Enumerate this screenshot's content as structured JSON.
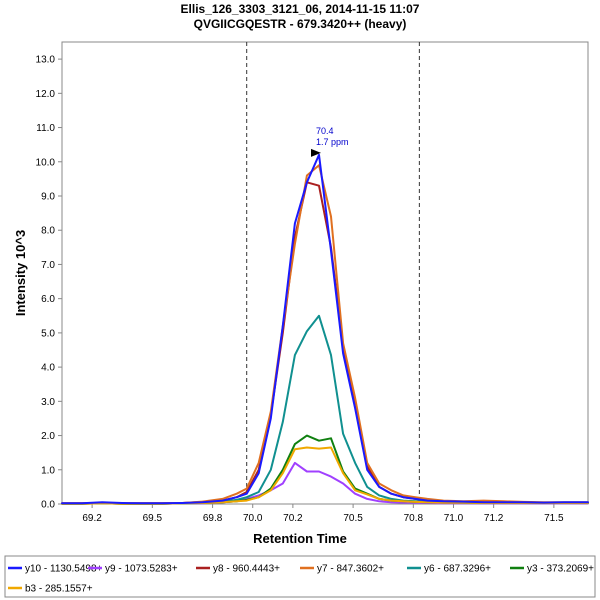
{
  "chart_data": {
    "type": "line",
    "title": "Ellis_126_3303_3121_06, 2014-11-15 11:07",
    "subtitle": "QVGIICGQESTR - 679.3420++ (heavy)",
    "xlabel": "Retention Time",
    "ylabel": "Intensity 10^3",
    "xlim": [
      69.05,
      71.67
    ],
    "ylim": [
      0,
      13.5
    ],
    "xticks": [
      69.2,
      69.5,
      69.8,
      70.0,
      70.2,
      70.5,
      70.8,
      71.0,
      71.2,
      71.5
    ],
    "xtick_labels": [
      "69.2",
      "69.5",
      "69.8",
      "70.0",
      "70.2",
      "70.5",
      "70.8",
      "71.0",
      "71.2",
      "71.5"
    ],
    "yticks": [
      0,
      1,
      2,
      3,
      4,
      5,
      6,
      7,
      8,
      9,
      10,
      11,
      12,
      13
    ],
    "ytick_labels": [
      "0.0",
      "1.0",
      "2.0",
      "3.0",
      "4.0",
      "5.0",
      "6.0",
      "7.0",
      "8.0",
      "9.0",
      "10.0",
      "11.0",
      "12.0",
      "13.0"
    ],
    "integration_bounds": [
      69.97,
      70.83
    ],
    "peak_annotation": {
      "x": 70.35,
      "y": 10.2,
      "rt_label": "70.4",
      "ppm_label": "1.7 ppm"
    },
    "x": [
      69.05,
      69.15,
      69.25,
      69.35,
      69.45,
      69.55,
      69.65,
      69.75,
      69.85,
      69.92,
      69.97,
      70.03,
      70.09,
      70.15,
      70.21,
      70.27,
      70.33,
      70.39,
      70.45,
      70.51,
      70.57,
      70.63,
      70.69,
      70.75,
      70.81,
      70.87,
      70.95,
      71.05,
      71.15,
      71.25,
      71.35,
      71.45,
      71.55,
      71.67
    ],
    "series": [
      {
        "name": "y10 - 1130.5498+",
        "color": "#1a1aff",
        "values": [
          0.02,
          0.02,
          0.05,
          0.03,
          0.02,
          0.02,
          0.03,
          0.05,
          0.1,
          0.2,
          0.3,
          0.9,
          2.5,
          5.2,
          8.2,
          9.4,
          10.2,
          7.4,
          4.4,
          2.8,
          1.0,
          0.5,
          0.3,
          0.2,
          0.15,
          0.1,
          0.08,
          0.07,
          0.05,
          0.05,
          0.05,
          0.04,
          0.05,
          0.05
        ]
      },
      {
        "name": "y9 - 1073.5283+",
        "color": "#a040ff",
        "values": [
          0.01,
          0.01,
          0.02,
          0.01,
          0.01,
          0.01,
          0.02,
          0.02,
          0.05,
          0.08,
          0.15,
          0.25,
          0.4,
          0.6,
          1.2,
          0.95,
          0.95,
          0.8,
          0.6,
          0.3,
          0.15,
          0.08,
          0.05,
          0.04,
          0.04,
          0.03,
          0.02,
          0.02,
          0.02,
          0.02,
          0.02,
          0.02,
          0.02,
          0.02
        ]
      },
      {
        "name": "y8 - 960.4443+",
        "color": "#aa2020",
        "values": [
          0.02,
          0.02,
          0.03,
          0.02,
          0.02,
          0.02,
          0.03,
          0.06,
          0.1,
          0.2,
          0.35,
          1.0,
          2.6,
          5.0,
          7.8,
          9.4,
          9.3,
          7.5,
          4.6,
          2.9,
          1.1,
          0.5,
          0.3,
          0.2,
          0.15,
          0.1,
          0.08,
          0.06,
          0.05,
          0.05,
          0.04,
          0.04,
          0.04,
          0.04
        ]
      },
      {
        "name": "y7 - 847.3602+",
        "color": "#e07020",
        "values": [
          0.02,
          0.02,
          0.03,
          0.02,
          0.02,
          0.02,
          0.03,
          0.07,
          0.15,
          0.3,
          0.45,
          1.2,
          2.7,
          5.2,
          7.6,
          9.6,
          9.9,
          8.4,
          4.7,
          3.1,
          1.2,
          0.6,
          0.4,
          0.25,
          0.2,
          0.15,
          0.1,
          0.08,
          0.1,
          0.08,
          0.06,
          0.05,
          0.05,
          0.05
        ]
      },
      {
        "name": "y6 - 687.3296+",
        "color": "#109090",
        "values": [
          0.01,
          0.01,
          0.02,
          0.01,
          0.01,
          0.01,
          0.02,
          0.03,
          0.07,
          0.12,
          0.2,
          0.35,
          1.0,
          2.4,
          4.35,
          5.05,
          5.5,
          4.35,
          2.05,
          1.2,
          0.5,
          0.25,
          0.15,
          0.1,
          0.08,
          0.06,
          0.05,
          0.04,
          0.04,
          0.04,
          0.03,
          0.03,
          0.03,
          0.03
        ]
      },
      {
        "name": "y3 - 373.2069+",
        "color": "#108010",
        "values": [
          0.01,
          0.01,
          0.02,
          0.01,
          0.01,
          0.01,
          0.02,
          0.03,
          0.05,
          0.08,
          0.12,
          0.2,
          0.45,
          1.0,
          1.75,
          2.0,
          1.85,
          1.92,
          0.95,
          0.45,
          0.3,
          0.15,
          0.1,
          0.08,
          0.06,
          0.05,
          0.04,
          0.04,
          0.03,
          0.03,
          0.03,
          0.03,
          0.03,
          0.03
        ]
      },
      {
        "name": "b3 - 285.1557+",
        "color": "#f0a800",
        "values": [
          0.01,
          0.01,
          0.02,
          0.01,
          0.01,
          0.01,
          0.02,
          0.03,
          0.05,
          0.08,
          0.1,
          0.2,
          0.4,
          0.9,
          1.6,
          1.65,
          1.62,
          1.65,
          0.9,
          0.4,
          0.28,
          0.15,
          0.1,
          0.08,
          0.06,
          0.05,
          0.04,
          0.04,
          0.03,
          0.03,
          0.03,
          0.03,
          0.03,
          0.03
        ]
      }
    ]
  }
}
